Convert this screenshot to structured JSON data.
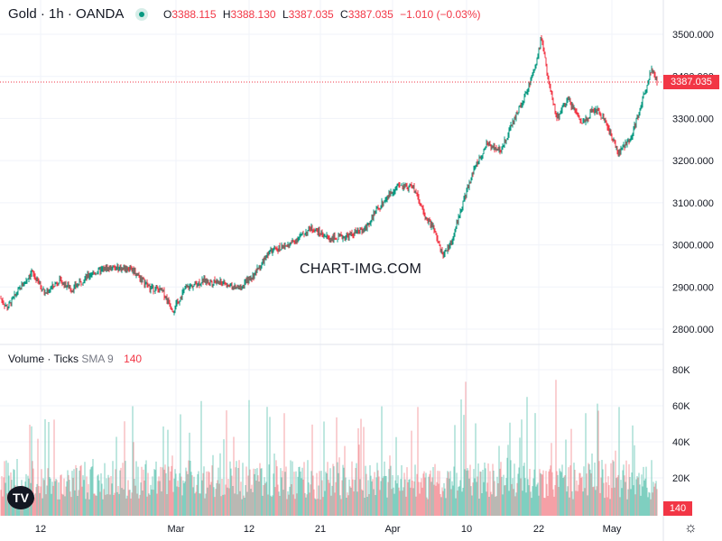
{
  "header": {
    "symbol": "Gold · 1h · OANDA",
    "ohlc": [
      {
        "k": "O",
        "v": "3388.115"
      },
      {
        "k": "H",
        "v": "3388.130"
      },
      {
        "k": "L",
        "v": "3387.035"
      },
      {
        "k": "C",
        "v": "3387.035"
      }
    ],
    "change": "−1.010 (−0.03%)"
  },
  "volume_header": {
    "title": "Volume · Ticks",
    "study": "SMA 9",
    "value": "140"
  },
  "watermark": "CHART-IMG.COM",
  "logo_text": "TV",
  "price_tag": "3387.035",
  "volume_tag": "140",
  "colors": {
    "up": "#089981",
    "down": "#f23645",
    "grid": "#f0f3fa",
    "text": "#131722",
    "up_vol": "#7fcfc0",
    "down_vol": "#f5a0a6"
  },
  "chart_data": [
    {
      "type": "candlestick",
      "symbol": "Gold · 1h · OANDA",
      "ylim": [
        2780,
        3520
      ],
      "y_ticks": [
        "2800.000",
        "2900.000",
        "3000.000",
        "3100.000",
        "3200.000",
        "3300.000",
        "3400.000",
        "3500.000"
      ],
      "x_ticks": [
        "12",
        "Mar",
        "12",
        "21",
        "Apr",
        "10",
        "22",
        "May"
      ],
      "last_price": 3387.035,
      "trend": [
        {
          "x": 0,
          "y": 2875
        },
        {
          "x": 8,
          "y": 2850
        },
        {
          "x": 20,
          "y": 2890
        },
        {
          "x": 35,
          "y": 2935
        },
        {
          "x": 50,
          "y": 2885
        },
        {
          "x": 65,
          "y": 2915
        },
        {
          "x": 80,
          "y": 2895
        },
        {
          "x": 100,
          "y": 2930
        },
        {
          "x": 120,
          "y": 2945
        },
        {
          "x": 145,
          "y": 2945
        },
        {
          "x": 165,
          "y": 2900
        },
        {
          "x": 180,
          "y": 2890
        },
        {
          "x": 192,
          "y": 2845
        },
        {
          "x": 205,
          "y": 2895
        },
        {
          "x": 225,
          "y": 2915
        },
        {
          "x": 245,
          "y": 2910
        },
        {
          "x": 265,
          "y": 2895
        },
        {
          "x": 280,
          "y": 2925
        },
        {
          "x": 300,
          "y": 2985
        },
        {
          "x": 320,
          "y": 3000
        },
        {
          "x": 345,
          "y": 3040
        },
        {
          "x": 365,
          "y": 3015
        },
        {
          "x": 385,
          "y": 3020
        },
        {
          "x": 405,
          "y": 3040
        },
        {
          "x": 420,
          "y": 3090
        },
        {
          "x": 440,
          "y": 3140
        },
        {
          "x": 460,
          "y": 3135
        },
        {
          "x": 470,
          "y": 3070
        },
        {
          "x": 480,
          "y": 3040
        },
        {
          "x": 490,
          "y": 2975
        },
        {
          "x": 500,
          "y": 3005
        },
        {
          "x": 510,
          "y": 3080
        },
        {
          "x": 525,
          "y": 3180
        },
        {
          "x": 540,
          "y": 3240
        },
        {
          "x": 555,
          "y": 3225
        },
        {
          "x": 570,
          "y": 3300
        },
        {
          "x": 585,
          "y": 3370
        },
        {
          "x": 595,
          "y": 3440
        },
        {
          "x": 600,
          "y": 3495
        },
        {
          "x": 608,
          "y": 3380
        },
        {
          "x": 617,
          "y": 3300
        },
        {
          "x": 630,
          "y": 3345
        },
        {
          "x": 645,
          "y": 3290
        },
        {
          "x": 660,
          "y": 3325
        },
        {
          "x": 672,
          "y": 3290
        },
        {
          "x": 685,
          "y": 3215
        },
        {
          "x": 700,
          "y": 3260
        },
        {
          "x": 710,
          "y": 3330
        },
        {
          "x": 722,
          "y": 3420
        },
        {
          "x": 728,
          "y": 3387
        }
      ]
    },
    {
      "type": "bar",
      "title": "Volume · Ticks",
      "ylim": [
        0,
        90000
      ],
      "y_ticks": [
        "20K",
        "40K",
        "60K",
        "80K"
      ],
      "last_value": 140
    }
  ]
}
